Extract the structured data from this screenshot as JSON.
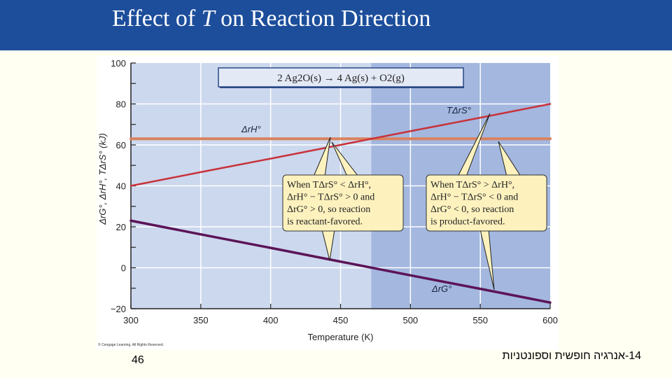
{
  "slide": {
    "title_prefix": "Effect of ",
    "title_italic": "T",
    "title_suffix": " on Reaction Direction",
    "page_number": "46",
    "footer": "14-אנרגיה חופשית וספונטניות",
    "copyright": "© Cengage Learning. All Rights Reserved."
  },
  "colors": {
    "title_bar": "#1D4E9B",
    "slide_bg": "#FFFFF2",
    "plot_bg_light": "#CCD8EE",
    "plot_bg_dark": "#A3B7DF",
    "delta_h_line": "#D9825F",
    "t_delta_s_line": "#C8323A",
    "delta_g_line": "#5C1457",
    "callout_fill": "#FDF2BE"
  },
  "chart_data": {
    "type": "line",
    "title": "Effect of T on Reaction Direction",
    "reaction": "2 Ag2O(s) → 4 Ag(s) + O2(g)",
    "xlabel": "Temperature (K)",
    "ylabel": "ΔrG°, ΔrH°, TΔrS° (kJ)",
    "xlim": [
      300,
      600
    ],
    "ylim": [
      -20,
      100
    ],
    "xticks": [
      300,
      350,
      400,
      450,
      500,
      550,
      600
    ],
    "yticks": [
      -20,
      0,
      20,
      40,
      60,
      80,
      100
    ],
    "grid": true,
    "x": [
      300,
      350,
      400,
      450,
      500,
      550,
      600
    ],
    "series": [
      {
        "name": "ΔrH°",
        "values": [
          63,
          63,
          63,
          63,
          63,
          63,
          63
        ]
      },
      {
        "name": "TΔrS°",
        "values": [
          40,
          46.7,
          53.3,
          60,
          66.7,
          73.3,
          80
        ]
      },
      {
        "name": "ΔrG°",
        "values": [
          23,
          16.3,
          9.7,
          3,
          -3.7,
          -10.3,
          -17
        ]
      }
    ],
    "shaded_region": {
      "from_T": 472,
      "to_T": 600,
      "meaning": "product-favored"
    },
    "annotations": [
      {
        "label": "ΔrH°"
      },
      {
        "label": "TΔrS°"
      },
      {
        "label": "ΔrG°"
      },
      {
        "lines": [
          "When TΔrS° < ΔrH°,",
          "ΔrH° − TΔrS° > 0 and",
          "ΔrG° > 0, so reaction",
          "is reactant-favored."
        ]
      },
      {
        "lines": [
          "When TΔrS° > ΔrH°,",
          "ΔrH° − TΔrS° < 0 and",
          "ΔrG° < 0, so reaction",
          "is product-favored."
        ]
      }
    ]
  }
}
